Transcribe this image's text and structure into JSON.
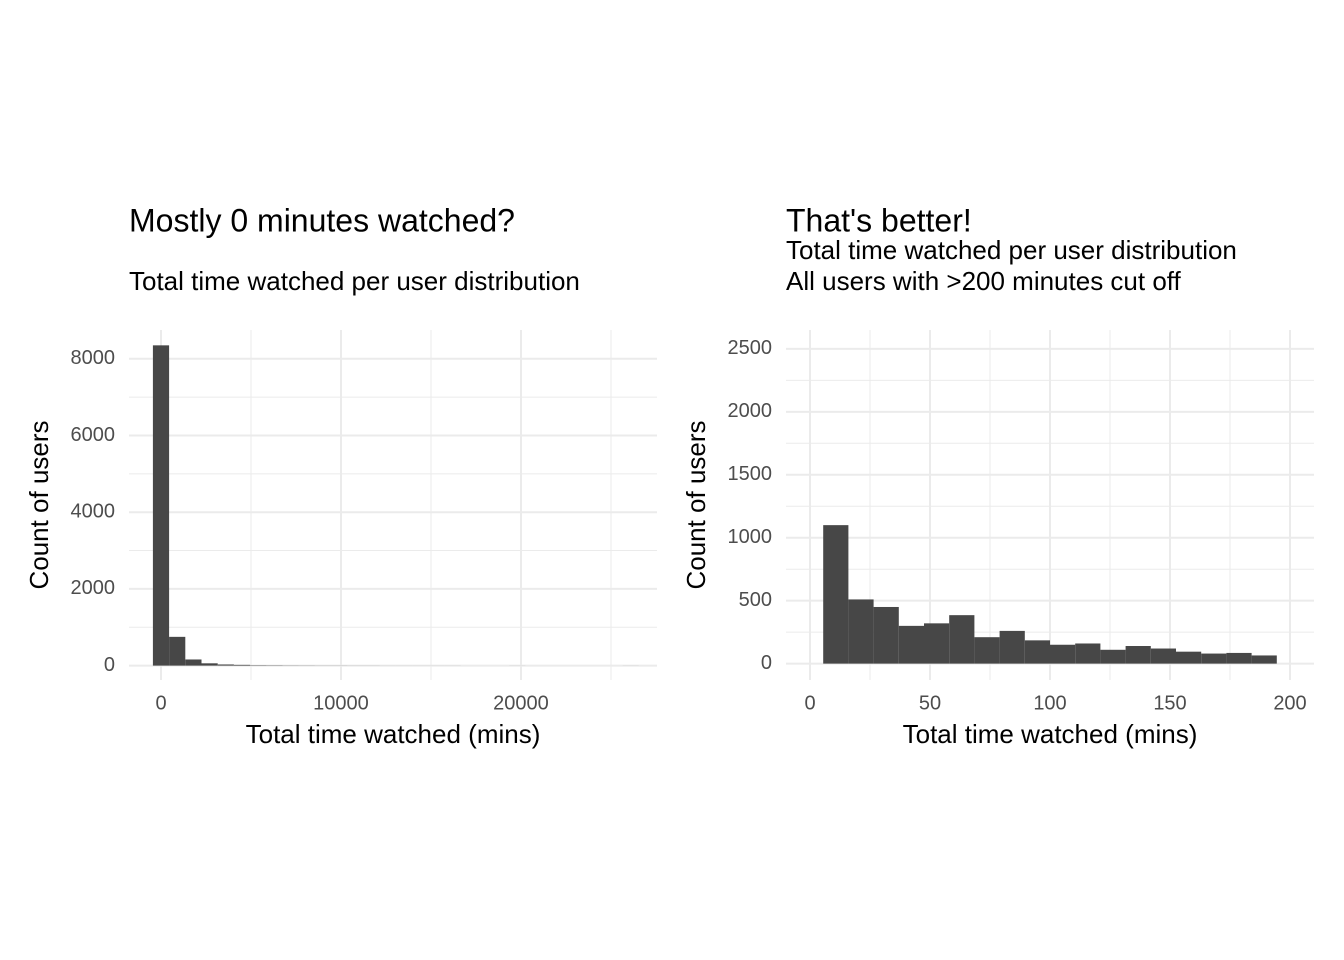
{
  "chart_data": [
    {
      "type": "histogram",
      "title": "Mostly 0 minutes watched?",
      "subtitle": [
        "Total time watched per user distribution"
      ],
      "xlabel": "Total time watched (mins)",
      "ylabel": "Count of users",
      "bins": [
        -450,
        450,
        1350,
        2250,
        3150,
        4050,
        4950,
        5850,
        6750,
        7650,
        8550,
        9450,
        10350,
        11250,
        12150,
        13050,
        13950,
        14850,
        15750,
        16650,
        17550,
        18450,
        19350,
        20250,
        21150,
        22050,
        22950,
        23850,
        24750,
        25650,
        26550
      ],
      "values": [
        8350,
        750,
        160,
        60,
        30,
        20,
        10,
        8,
        5,
        4,
        3,
        3,
        2,
        2,
        1,
        1,
        1,
        1,
        1,
        0,
        0,
        0,
        1,
        0,
        0,
        0,
        0,
        0,
        0,
        1
      ],
      "color": "#474747",
      "xlim": [
        -1778,
        27556
      ],
      "ylim": [
        -375,
        8750
      ],
      "xticks": [
        0,
        10000,
        20000
      ],
      "yticks": [
        0,
        2000,
        4000,
        6000,
        8000
      ],
      "x_minor_ticks": [
        5000,
        15000,
        25000
      ],
      "y_minor_ticks": [
        1000,
        3000,
        5000,
        7000
      ],
      "grid": true
    },
    {
      "type": "histogram",
      "title": "That's better!",
      "subtitle": [
        "Total time watched per user distribution",
        "All users with >200 minutes cut off"
      ],
      "xlabel": "Total time watched (mins)",
      "ylabel": "Count of users",
      "bins": [
        5.5,
        16,
        26.5,
        37,
        47.5,
        58,
        68.5,
        79,
        89.5,
        100,
        110.5,
        121,
        131.5,
        142,
        152.5,
        163,
        173.5,
        184,
        194.5
      ],
      "values": [
        1100,
        510,
        450,
        300,
        320,
        385,
        210,
        260,
        185,
        150,
        160,
        110,
        140,
        120,
        95,
        80,
        85,
        65
      ],
      "color": "#474747",
      "xlim": [
        -10,
        210
      ],
      "ylim": [
        -130,
        2650
      ],
      "xticks": [
        0,
        50,
        100,
        150,
        200
      ],
      "yticks": [
        0,
        500,
        1000,
        1500,
        2000,
        2500
      ],
      "x_minor_ticks": [
        25,
        75,
        125,
        175
      ],
      "y_minor_ticks": [
        250,
        750,
        1250,
        1750,
        2250
      ],
      "grid": true
    }
  ]
}
